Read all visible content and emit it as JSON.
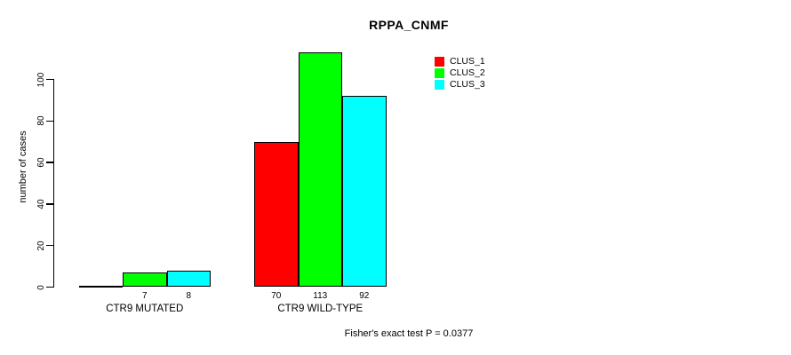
{
  "chart_data": {
    "type": "bar",
    "title": "RPPA_CNMF",
    "xlabel": "",
    "ylabel": "number of cases",
    "categories": [
      "CTR9 MUTATED",
      "CTR9 WILD-TYPE"
    ],
    "series": [
      {
        "name": "CLUS_1",
        "color": "#ff0000",
        "values": [
          0,
          70
        ]
      },
      {
        "name": "CLUS_2",
        "color": "#00ff00",
        "values": [
          7,
          113
        ]
      },
      {
        "name": "CLUS_3",
        "color": "#00ffff",
        "values": [
          8,
          92
        ]
      }
    ],
    "bar_labels": [
      [
        "",
        "7",
        "8"
      ],
      [
        "70",
        "113",
        "92"
      ]
    ],
    "yticks": [
      0,
      20,
      40,
      60,
      80,
      100
    ],
    "ylim": [
      0,
      100
    ],
    "grid": false,
    "legend_position": "top-right",
    "annotation": "Fisher's exact test P = 0.0377"
  }
}
